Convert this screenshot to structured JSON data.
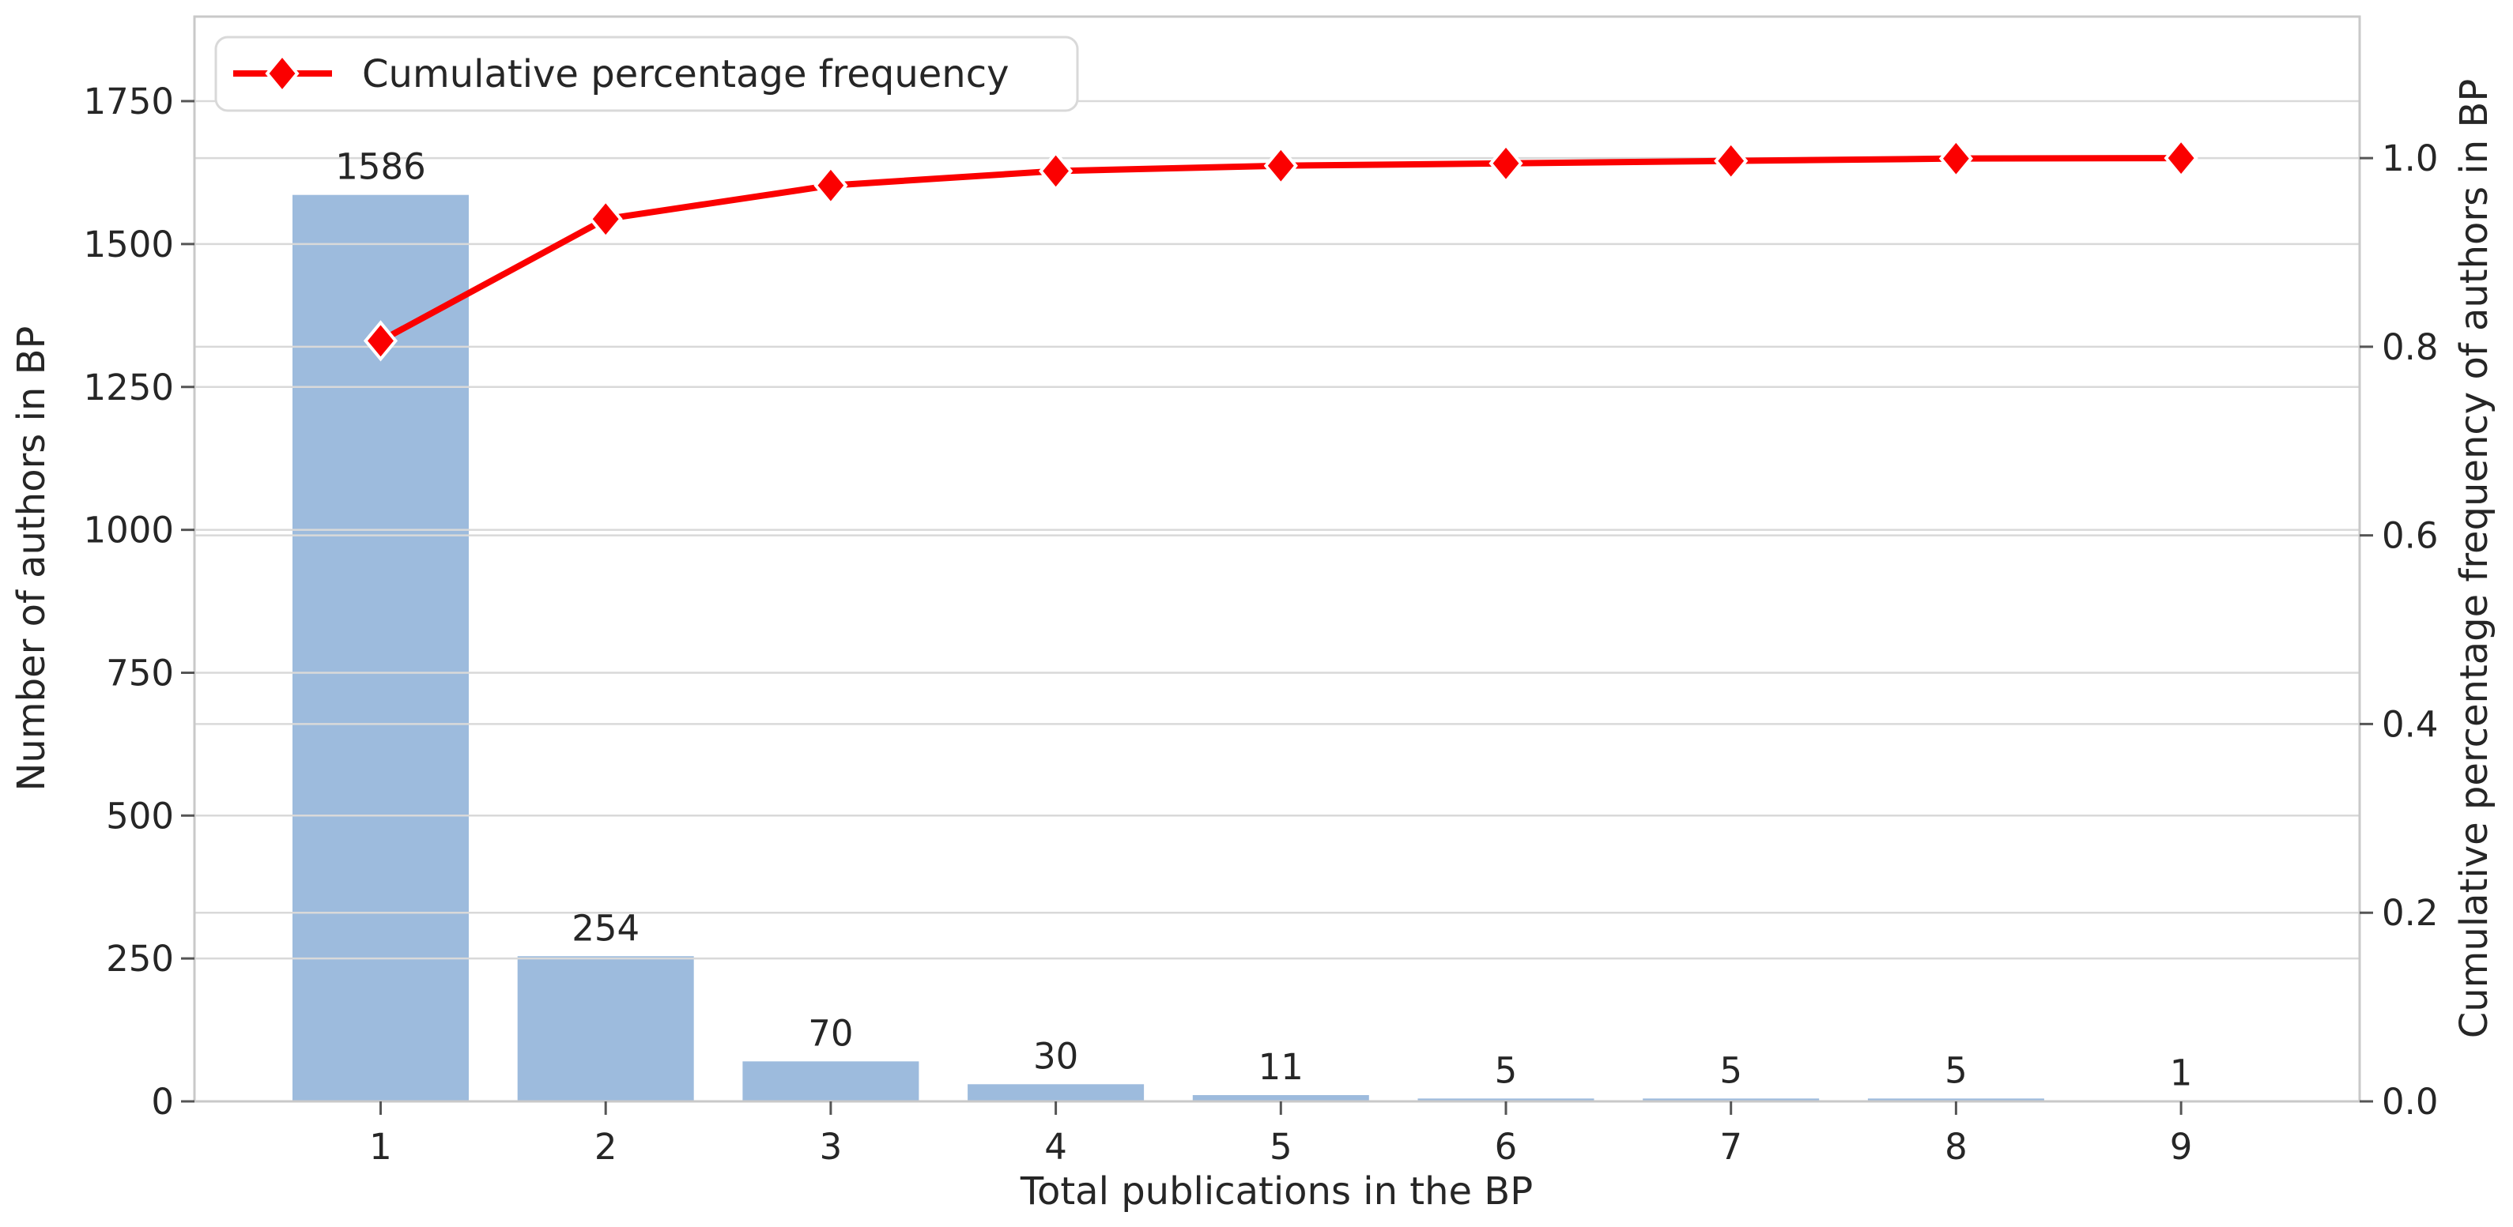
{
  "chart_data": {
    "type": "bar+line (pareto)",
    "title": "",
    "categories": [
      1,
      2,
      3,
      4,
      5,
      6,
      7,
      8,
      9
    ],
    "series": [
      {
        "name": "Number of authors in BP",
        "type": "bar",
        "axis": "left",
        "values": [
          1586,
          254,
          70,
          30,
          11,
          5,
          5,
          5,
          1
        ],
        "bar_labels": [
          "1586",
          "254",
          "70",
          "30",
          "11",
          "5",
          "5",
          "5",
          "1"
        ]
      },
      {
        "name": "Cumulative percentage frequency",
        "type": "line",
        "axis": "right",
        "marker": "diamond",
        "values": [
          0.8063,
          0.9354,
          0.971,
          0.9863,
          0.9919,
          0.9944,
          0.997,
          0.9995,
          1.0
        ]
      }
    ],
    "xlabel": "Total publications in the BP",
    "ylabel_left": "Number of authors in BP",
    "ylabel_right": "Cumulative percentage frequency of authors in BP",
    "xtick_labels": [
      "1",
      "2",
      "3",
      "4",
      "5",
      "6",
      "7",
      "8",
      "9"
    ],
    "yticks_left": [
      0,
      250,
      500,
      750,
      1000,
      1250,
      1500,
      1750
    ],
    "ytick_left_labels": [
      "0",
      "250",
      "500",
      "750",
      "1000",
      "1250",
      "1500",
      "1750"
    ],
    "yticks_right": [
      0.0,
      0.2,
      0.4,
      0.6,
      0.8,
      1.0
    ],
    "ytick_right_labels": [
      "0.0",
      "0.2",
      "0.4",
      "0.6",
      "0.8",
      "1.0"
    ],
    "ylim_left": [
      0,
      1898
    ],
    "ylim_right": [
      0,
      1.15
    ],
    "grid": true,
    "legend": {
      "label": "Cumulative percentage frequency",
      "position": "upper left"
    },
    "colors": {
      "bar": "#9dbbdd",
      "line": "#fb0000",
      "marker_edge": "#ffffff",
      "grid": "#d9d9d9",
      "spine": "#c9c9c9",
      "tick": "#555555",
      "text": "#262626",
      "legend_border": "#d9d9d9",
      "background": "#ffffff"
    }
  }
}
